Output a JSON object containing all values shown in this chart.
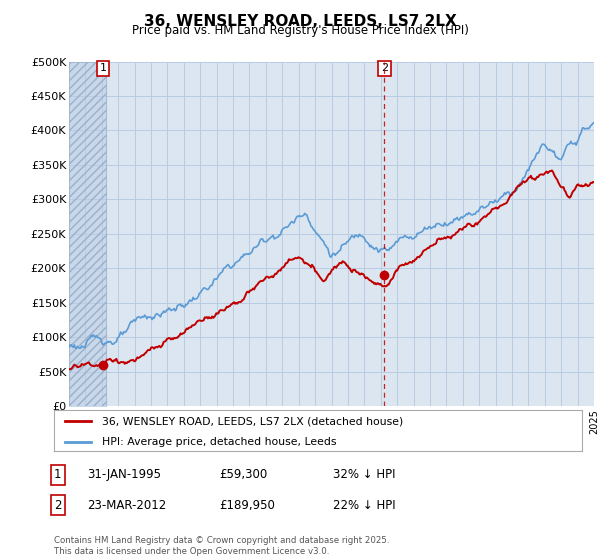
{
  "title": "36, WENSLEY ROAD, LEEDS, LS7 2LX",
  "subtitle": "Price paid vs. HM Land Registry's House Price Index (HPI)",
  "ylabel_ticks": [
    "£0",
    "£50K",
    "£100K",
    "£150K",
    "£200K",
    "£250K",
    "£300K",
    "£350K",
    "£400K",
    "£450K",
    "£500K"
  ],
  "ytick_values": [
    0,
    50000,
    100000,
    150000,
    200000,
    250000,
    300000,
    350000,
    400000,
    450000,
    500000
  ],
  "ylim": [
    0,
    500000
  ],
  "xlim_start": 1993,
  "xlim_end": 2025,
  "hpi_color": "#5b9bd5",
  "price_color": "#c00000",
  "vline_color": "#c00000",
  "grid_color": "#b8cce4",
  "plot_bg": "#dce6f1",
  "hatch_bg": "#c8d8ea",
  "marker1_year": 1995.08,
  "marker1_value": 59300,
  "marker2_year": 2012.22,
  "marker2_value": 189950,
  "legend_property": "36, WENSLEY ROAD, LEEDS, LS7 2LX (detached house)",
  "legend_hpi": "HPI: Average price, detached house, Leeds",
  "ann1_num": "1",
  "ann1_date": "31-JAN-1995",
  "ann1_price": "£59,300",
  "ann1_pct": "32% ↓ HPI",
  "ann2_num": "2",
  "ann2_date": "23-MAR-2012",
  "ann2_price": "£189,950",
  "ann2_pct": "22% ↓ HPI",
  "footnote_line1": "Contains HM Land Registry data © Crown copyright and database right 2025.",
  "footnote_line2": "This data is licensed under the Open Government Licence v3.0."
}
